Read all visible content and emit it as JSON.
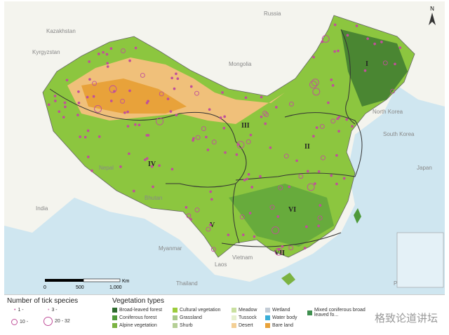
{
  "countries": [
    "Russia",
    "Kazakhstan",
    "Mongolia",
    "Kyrgyzstan",
    "Nepal",
    "India",
    "Bhutan",
    "Myanmar",
    "Laos",
    "Thailand",
    "Vietnam",
    "North Korea",
    "South Korea",
    "Japan",
    "Philippines"
  ],
  "regions": [
    "I",
    "II",
    "III",
    "IV",
    "V",
    "VI",
    "VII"
  ],
  "north_arrow": "N",
  "scale": {
    "ticks": [
      "0",
      "500",
      "1,000"
    ],
    "unit": "Km"
  },
  "tick_legend": {
    "title": "Number of tick species",
    "classes": [
      "1 -",
      "3 -",
      "10 -",
      "20 - 32"
    ],
    "color": "#c0509a"
  },
  "vegetation_legend": {
    "title": "Vegetation types",
    "items": [
      {
        "label": "Broad-leaved forest",
        "color": "#2e6b2e"
      },
      {
        "label": "Coniferous forest",
        "color": "#4f9a3a"
      },
      {
        "label": "Alpine vegetation",
        "color": "#7bb342"
      },
      {
        "label": "Cultural vegetation",
        "color": "#9ccc3c"
      },
      {
        "label": "Grassland",
        "color": "#a9c98a"
      },
      {
        "label": "Shurb",
        "color": "#b5cf96"
      },
      {
        "label": "Meadow",
        "color": "#c9e0a0"
      },
      {
        "label": "Tussock",
        "color": "#e6f0cf"
      },
      {
        "label": "Desert",
        "color": "#f3cf95"
      },
      {
        "label": "Wetland",
        "color": "#c3ccd6"
      },
      {
        "label": "Water body",
        "color": "#3aaed8"
      },
      {
        "label": "Bare land",
        "color": "#e8a23a"
      },
      {
        "label": "Mixed coniferous broad leaved fo...",
        "color": "#3f8f4f"
      }
    ]
  },
  "watermark": "格致论道讲坛"
}
